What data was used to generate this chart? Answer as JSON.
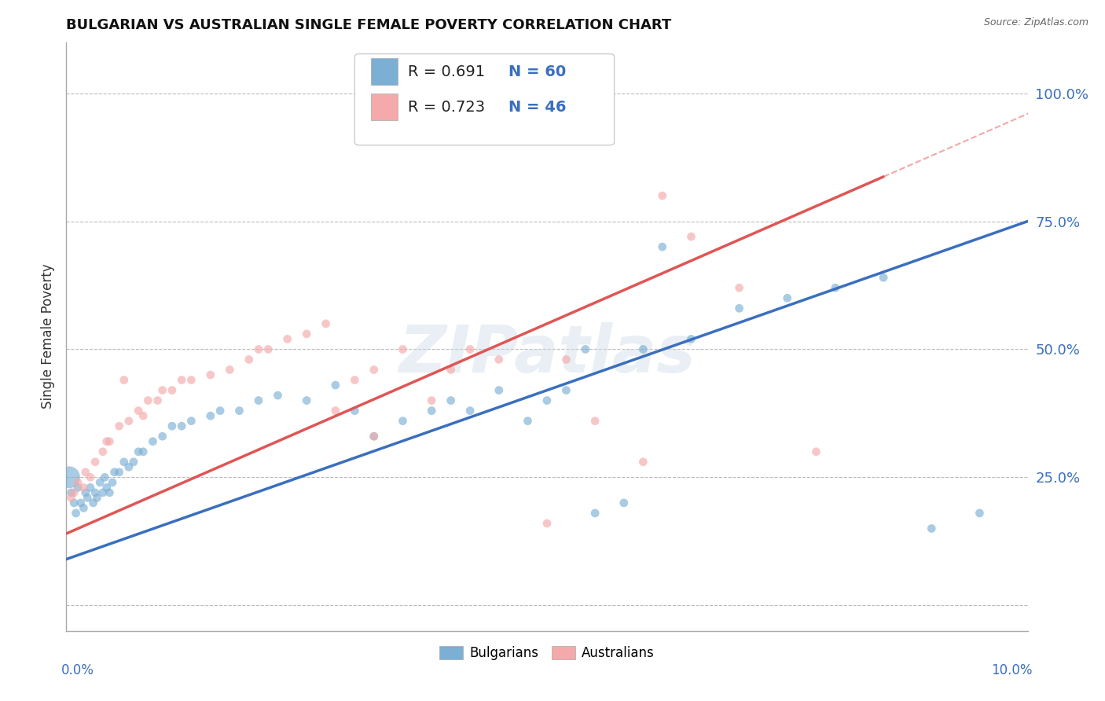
{
  "title": "BULGARIAN VS AUSTRALIAN SINGLE FEMALE POVERTY CORRELATION CHART",
  "source": "Source: ZipAtlas.com",
  "ylabel": "Single Female Poverty",
  "xlim": [
    0.0,
    10.0
  ],
  "ylim": [
    -0.05,
    1.1
  ],
  "yticks": [
    0.0,
    0.25,
    0.5,
    0.75,
    1.0
  ],
  "ytick_labels": [
    "",
    "25.0%",
    "50.0%",
    "75.0%",
    "100.0%"
  ],
  "watermark": "ZIPatlas",
  "blue_r": "R = 0.691",
  "blue_n": "N = 60",
  "pink_r": "R = 0.723",
  "pink_n": "N = 46",
  "blue_scatter_color": "#7bafd4",
  "pink_scatter_color": "#f4aaaa",
  "blue_line_color": "#3a6fbe",
  "pink_line_color": "#e05555",
  "r_text_color": "#222222",
  "n_text_color": "#3a6fbe",
  "label_color": "#3a6fbe",
  "blue_line_intercept": 0.09,
  "blue_line_slope": 0.066,
  "pink_line_intercept": 0.14,
  "pink_line_slope": 0.082,
  "blue_scatter": [
    [
      0.05,
      0.22
    ],
    [
      0.08,
      0.2
    ],
    [
      0.1,
      0.18
    ],
    [
      0.12,
      0.23
    ],
    [
      0.15,
      0.2
    ],
    [
      0.18,
      0.19
    ],
    [
      0.2,
      0.22
    ],
    [
      0.22,
      0.21
    ],
    [
      0.25,
      0.23
    ],
    [
      0.28,
      0.2
    ],
    [
      0.3,
      0.22
    ],
    [
      0.32,
      0.21
    ],
    [
      0.35,
      0.24
    ],
    [
      0.38,
      0.22
    ],
    [
      0.4,
      0.25
    ],
    [
      0.42,
      0.23
    ],
    [
      0.45,
      0.22
    ],
    [
      0.48,
      0.24
    ],
    [
      0.5,
      0.26
    ],
    [
      0.55,
      0.26
    ],
    [
      0.6,
      0.28
    ],
    [
      0.65,
      0.27
    ],
    [
      0.7,
      0.28
    ],
    [
      0.75,
      0.3
    ],
    [
      0.8,
      0.3
    ],
    [
      0.9,
      0.32
    ],
    [
      1.0,
      0.33
    ],
    [
      1.1,
      0.35
    ],
    [
      1.2,
      0.35
    ],
    [
      1.3,
      0.36
    ],
    [
      1.5,
      0.37
    ],
    [
      1.6,
      0.38
    ],
    [
      1.8,
      0.38
    ],
    [
      2.0,
      0.4
    ],
    [
      2.2,
      0.41
    ],
    [
      2.5,
      0.4
    ],
    [
      2.8,
      0.43
    ],
    [
      3.0,
      0.38
    ],
    [
      3.2,
      0.33
    ],
    [
      3.5,
      0.36
    ],
    [
      3.8,
      0.38
    ],
    [
      4.0,
      0.4
    ],
    [
      4.2,
      0.38
    ],
    [
      4.5,
      0.42
    ],
    [
      4.8,
      0.36
    ],
    [
      5.0,
      0.4
    ],
    [
      5.2,
      0.42
    ],
    [
      5.5,
      0.18
    ],
    [
      5.8,
      0.2
    ],
    [
      6.0,
      0.5
    ],
    [
      6.5,
      0.52
    ],
    [
      7.0,
      0.58
    ],
    [
      7.5,
      0.6
    ],
    [
      8.0,
      0.62
    ],
    [
      8.5,
      0.64
    ],
    [
      9.0,
      0.15
    ],
    [
      9.5,
      0.18
    ],
    [
      0.03,
      0.25
    ],
    [
      5.4,
      0.5
    ],
    [
      6.2,
      0.7
    ]
  ],
  "blue_scatter_sizes": [
    60,
    60,
    60,
    60,
    60,
    60,
    60,
    60,
    60,
    60,
    60,
    60,
    60,
    60,
    60,
    60,
    60,
    60,
    60,
    60,
    60,
    60,
    60,
    60,
    60,
    60,
    60,
    60,
    60,
    60,
    60,
    60,
    60,
    60,
    60,
    60,
    60,
    60,
    60,
    60,
    60,
    60,
    60,
    60,
    60,
    60,
    60,
    60,
    60,
    60,
    60,
    60,
    60,
    60,
    60,
    60,
    60,
    400,
    60,
    60
  ],
  "pink_scatter": [
    [
      0.05,
      0.21
    ],
    [
      0.08,
      0.22
    ],
    [
      0.12,
      0.24
    ],
    [
      0.18,
      0.23
    ],
    [
      0.25,
      0.25
    ],
    [
      0.3,
      0.28
    ],
    [
      0.38,
      0.3
    ],
    [
      0.45,
      0.32
    ],
    [
      0.55,
      0.35
    ],
    [
      0.65,
      0.36
    ],
    [
      0.75,
      0.38
    ],
    [
      0.85,
      0.4
    ],
    [
      0.95,
      0.4
    ],
    [
      1.1,
      0.42
    ],
    [
      1.3,
      0.44
    ],
    [
      1.5,
      0.45
    ],
    [
      1.7,
      0.46
    ],
    [
      1.9,
      0.48
    ],
    [
      2.1,
      0.5
    ],
    [
      2.3,
      0.52
    ],
    [
      2.5,
      0.53
    ],
    [
      2.7,
      0.55
    ],
    [
      3.0,
      0.44
    ],
    [
      3.2,
      0.46
    ],
    [
      3.5,
      0.5
    ],
    [
      3.8,
      0.4
    ],
    [
      4.0,
      0.46
    ],
    [
      4.5,
      0.48
    ],
    [
      5.0,
      0.16
    ],
    [
      5.5,
      0.36
    ],
    [
      6.0,
      0.28
    ],
    [
      6.5,
      0.72
    ],
    [
      7.0,
      0.62
    ],
    [
      7.8,
      0.3
    ],
    [
      0.2,
      0.26
    ],
    [
      0.42,
      0.32
    ],
    [
      0.6,
      0.44
    ],
    [
      0.8,
      0.37
    ],
    [
      1.0,
      0.42
    ],
    [
      1.2,
      0.44
    ],
    [
      2.0,
      0.5
    ],
    [
      2.8,
      0.38
    ],
    [
      3.2,
      0.33
    ],
    [
      4.2,
      0.5
    ],
    [
      5.2,
      0.48
    ],
    [
      6.2,
      0.8
    ]
  ],
  "pink_scatter_sizes": [
    60,
    60,
    60,
    60,
    60,
    60,
    60,
    60,
    60,
    60,
    60,
    60,
    60,
    60,
    60,
    60,
    60,
    60,
    60,
    60,
    60,
    60,
    60,
    60,
    60,
    60,
    60,
    60,
    60,
    60,
    60,
    60,
    60,
    60,
    60,
    60,
    60,
    60,
    60,
    60,
    60,
    60,
    60,
    60,
    60,
    60
  ],
  "background_color": "#ffffff",
  "grid_color": "#bbbbbb"
}
